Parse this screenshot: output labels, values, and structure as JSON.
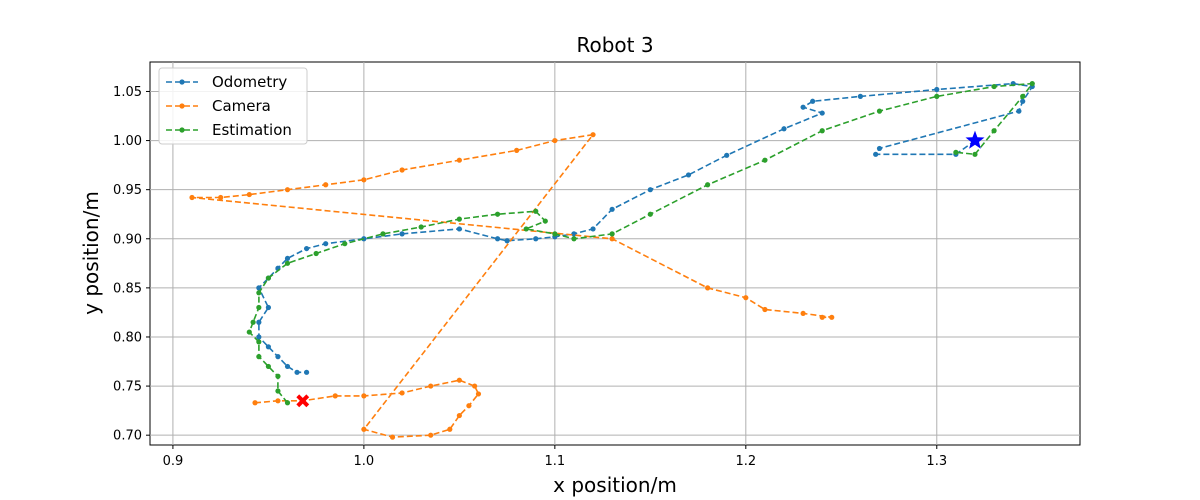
{
  "chart_data": {
    "type": "line",
    "title": "Robot 3",
    "xlabel": "x position/m",
    "ylabel": "y position/m",
    "xlim": [
      0.888,
      1.375
    ],
    "ylim": [
      0.69,
      1.08
    ],
    "xticks": [
      "0.9",
      "1.0",
      "1.1",
      "1.2",
      "1.3"
    ],
    "yticks": [
      "0.70",
      "0.75",
      "0.80",
      "0.85",
      "0.90",
      "0.95",
      "1.00",
      "1.05"
    ],
    "grid": true,
    "legend_position": "top-left",
    "series": [
      {
        "name": "Odometry",
        "color": "#1f77b4",
        "points": [
          [
            1.32,
            1.0
          ],
          [
            1.31,
            0.986
          ],
          [
            1.268,
            0.986
          ],
          [
            1.27,
            0.992
          ],
          [
            1.343,
            1.03
          ],
          [
            1.345,
            1.04
          ],
          [
            1.35,
            1.055
          ],
          [
            1.34,
            1.058
          ],
          [
            1.3,
            1.052
          ],
          [
            1.26,
            1.045
          ],
          [
            1.235,
            1.04
          ],
          [
            1.23,
            1.034
          ],
          [
            1.24,
            1.028
          ],
          [
            1.22,
            1.012
          ],
          [
            1.19,
            0.985
          ],
          [
            1.17,
            0.965
          ],
          [
            1.15,
            0.95
          ],
          [
            1.13,
            0.93
          ],
          [
            1.12,
            0.91
          ],
          [
            1.11,
            0.905
          ],
          [
            1.1,
            0.902
          ],
          [
            1.09,
            0.9
          ],
          [
            1.075,
            0.898
          ],
          [
            1.07,
            0.9
          ],
          [
            1.05,
            0.91
          ],
          [
            1.02,
            0.905
          ],
          [
            1.0,
            0.9
          ],
          [
            0.98,
            0.895
          ],
          [
            0.97,
            0.89
          ],
          [
            0.96,
            0.88
          ],
          [
            0.955,
            0.87
          ],
          [
            0.95,
            0.86
          ],
          [
            0.945,
            0.85
          ],
          [
            0.95,
            0.83
          ],
          [
            0.945,
            0.815
          ],
          [
            0.945,
            0.8
          ],
          [
            0.95,
            0.79
          ],
          [
            0.955,
            0.78
          ],
          [
            0.96,
            0.77
          ],
          [
            0.965,
            0.764
          ],
          [
            0.97,
            0.764
          ]
        ]
      },
      {
        "name": "Camera",
        "color": "#ff7f0e",
        "points": [
          [
            0.943,
            0.733
          ],
          [
            0.955,
            0.735
          ],
          [
            0.968,
            0.735
          ],
          [
            0.985,
            0.74
          ],
          [
            1.0,
            0.74
          ],
          [
            1.02,
            0.743
          ],
          [
            1.035,
            0.75
          ],
          [
            1.05,
            0.756
          ],
          [
            1.058,
            0.75
          ],
          [
            1.06,
            0.742
          ],
          [
            1.055,
            0.73
          ],
          [
            1.05,
            0.72
          ],
          [
            1.045,
            0.706
          ],
          [
            1.035,
            0.7
          ],
          [
            1.015,
            0.698
          ],
          [
            1.0,
            0.706
          ],
          [
            1.12,
            1.006
          ],
          [
            1.1,
            1.0
          ],
          [
            1.08,
            0.99
          ],
          [
            1.05,
            0.98
          ],
          [
            1.02,
            0.97
          ],
          [
            1.0,
            0.96
          ],
          [
            0.98,
            0.955
          ],
          [
            0.96,
            0.95
          ],
          [
            0.94,
            0.945
          ],
          [
            0.925,
            0.942
          ],
          [
            0.91,
            0.942
          ],
          [
            1.13,
            0.9
          ],
          [
            1.18,
            0.85
          ],
          [
            1.2,
            0.84
          ],
          [
            1.21,
            0.828
          ],
          [
            1.23,
            0.824
          ],
          [
            1.245,
            0.82
          ],
          [
            1.24,
            0.82
          ]
        ]
      },
      {
        "name": "Estimation",
        "color": "#2ca02c",
        "points": [
          [
            0.96,
            0.733
          ],
          [
            0.955,
            0.745
          ],
          [
            0.955,
            0.76
          ],
          [
            0.95,
            0.77
          ],
          [
            0.945,
            0.78
          ],
          [
            0.945,
            0.795
          ],
          [
            0.94,
            0.805
          ],
          [
            0.942,
            0.815
          ],
          [
            0.945,
            0.83
          ],
          [
            0.945,
            0.845
          ],
          [
            0.95,
            0.86
          ],
          [
            0.96,
            0.875
          ],
          [
            0.975,
            0.885
          ],
          [
            0.99,
            0.895
          ],
          [
            1.01,
            0.905
          ],
          [
            1.03,
            0.912
          ],
          [
            1.05,
            0.92
          ],
          [
            1.07,
            0.925
          ],
          [
            1.09,
            0.928
          ],
          [
            1.095,
            0.918
          ],
          [
            1.085,
            0.91
          ],
          [
            1.1,
            0.905
          ],
          [
            1.11,
            0.9
          ],
          [
            1.13,
            0.905
          ],
          [
            1.15,
            0.925
          ],
          [
            1.18,
            0.955
          ],
          [
            1.21,
            0.98
          ],
          [
            1.24,
            1.01
          ],
          [
            1.27,
            1.03
          ],
          [
            1.3,
            1.045
          ],
          [
            1.33,
            1.055
          ],
          [
            1.35,
            1.058
          ],
          [
            1.345,
            1.045
          ],
          [
            1.33,
            1.01
          ],
          [
            1.32,
            0.986
          ],
          [
            1.31,
            0.988
          ]
        ]
      }
    ],
    "markers": [
      {
        "name": "start",
        "shape": "star",
        "color": "#0000ff",
        "x": 1.32,
        "y": 1.0
      },
      {
        "name": "end",
        "shape": "x",
        "color": "#ff0000",
        "x": 0.968,
        "y": 0.735
      }
    ]
  }
}
